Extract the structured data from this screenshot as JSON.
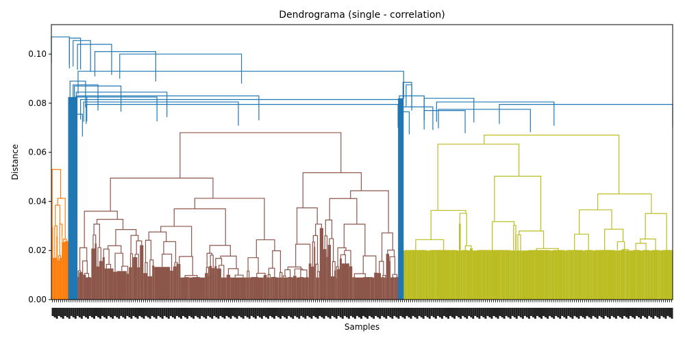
{
  "chart_data": {
    "type": "dendrogram",
    "title": "Dendrograma (single - correlation)",
    "xlabel": "Samples",
    "ylabel": "Distance",
    "ylim": [
      0,
      0.112
    ],
    "yticks": [
      0.0,
      0.02,
      0.04,
      0.06,
      0.08,
      0.1
    ],
    "ytick_labels": [
      "0.00",
      "0.02",
      "0.04",
      "0.06",
      "0.08",
      "0.10"
    ],
    "grid": false,
    "legend": "none",
    "leaf_labels": "dense, illegible sample index labels along the x axis",
    "colors": {
      "orange": "#ff7f0e",
      "blue": "#1f77b4",
      "brown": "#8c564b",
      "olive": "#bcbd22"
    },
    "clusters": [
      {
        "color": "orange",
        "leaf_span": [
          0.0,
          0.027
        ],
        "root_height": 0.053
      },
      {
        "color": "brown",
        "leaf_span": [
          0.042,
          0.56
        ],
        "root_height": 0.068
      },
      {
        "color": "olive",
        "leaf_span": [
          0.566,
          1.0
        ],
        "root_height": 0.067
      }
    ],
    "upper_merges": [
      {
        "height": 0.107,
        "left": 0.0,
        "right": 0.029
      },
      {
        "height": 0.1065,
        "left": 0.029,
        "right": 0.047
      },
      {
        "height": 0.1055,
        "left": 0.035,
        "right": 0.063
      },
      {
        "height": 0.104,
        "left": 0.042,
        "right": 0.097
      },
      {
        "height": 0.101,
        "left": 0.07,
        "right": 0.168
      },
      {
        "height": 0.1,
        "left": 0.11,
        "right": 0.306
      },
      {
        "height": 0.093,
        "left": 0.043,
        "right": 0.567
      },
      {
        "height": 0.089,
        "left": 0.03,
        "right": 0.055
      },
      {
        "height": 0.0885,
        "left": 0.566,
        "right": 0.58
      },
      {
        "height": 0.0875,
        "left": 0.035,
        "right": 0.075
      },
      {
        "height": 0.0875,
        "left": 0.571,
        "right": 0.58
      },
      {
        "height": 0.087,
        "left": 0.037,
        "right": 0.112
      },
      {
        "height": 0.0845,
        "left": 0.04,
        "right": 0.186
      },
      {
        "height": 0.083,
        "left": 0.56,
        "right": 0.6
      },
      {
        "height": 0.083,
        "left": 0.041,
        "right": 0.334
      },
      {
        "height": 0.0825,
        "left": 0.041,
        "right": 0.17
      },
      {
        "height": 0.0825,
        "left": 0.039,
        "right": 0.057
      },
      {
        "height": 0.082,
        "left": 0.6,
        "right": 0.68
      },
      {
        "height": 0.0815,
        "left": 0.047,
        "right": 0.56
      },
      {
        "height": 0.0805,
        "left": 0.052,
        "right": 0.301
      },
      {
        "height": 0.0805,
        "left": 0.62,
        "right": 0.809
      },
      {
        "height": 0.0795,
        "left": 0.056,
        "right": 0.558
      },
      {
        "height": 0.0795,
        "left": 0.721,
        "right": 1.0
      },
      {
        "height": 0.0785,
        "left": 0.56,
        "right": 0.614
      },
      {
        "height": 0.0775,
        "left": 0.623,
        "right": 0.771
      },
      {
        "height": 0.077,
        "left": 0.6,
        "right": 0.666
      },
      {
        "height": 0.0765,
        "left": 0.566,
        "right": 0.576
      },
      {
        "height": 0.0755,
        "left": 0.041,
        "right": 0.05
      }
    ]
  }
}
